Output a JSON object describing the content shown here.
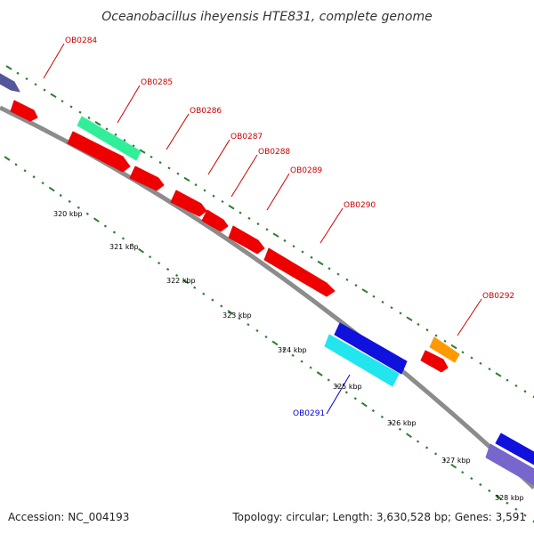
{
  "title": "Oceanobacillus iheyensis HTE831, complete genome",
  "footer": {
    "accession": "Accession: NC_004193",
    "summary": "Topology: circular; Length: 3,630,528 bp; Genes: 3,591"
  },
  "colors": {
    "backbone": "#8c8c8c",
    "forward_label": "#cc0000",
    "reverse_label": "#0000cc",
    "tick": "#2e7d32",
    "gene_red": "#ee0000",
    "gene_teal": "#33ee99",
    "gene_orange": "#ff9900",
    "gene_blue": "#1111dd",
    "gene_cyan": "#22e5ee",
    "gene_purple": "#7766cc",
    "gene_slate": "#555599"
  },
  "kbp_labels": [
    "320 kbp",
    "321 kbp",
    "322 kbp",
    "323 kbp",
    "324 kbp",
    "325 kbp",
    "326 kbp",
    "327 kbp",
    "328 kbp"
  ],
  "gene_labels": [
    {
      "name": "OB0284",
      "strand": "forward"
    },
    {
      "name": "OB0285",
      "strand": "forward"
    },
    {
      "name": "OB0286",
      "strand": "forward"
    },
    {
      "name": "OB0287",
      "strand": "forward"
    },
    {
      "name": "OB0288",
      "strand": "forward"
    },
    {
      "name": "OB0289",
      "strand": "forward"
    },
    {
      "name": "OB0290",
      "strand": "forward"
    },
    {
      "name": "OB0292",
      "strand": "forward"
    },
    {
      "name": "OB0291",
      "strand": "reverse"
    }
  ],
  "features": [
    {
      "id": "slate-left",
      "color": "gene_slate"
    },
    {
      "id": "red-small-left",
      "color": "gene_red"
    },
    {
      "id": "teal",
      "color": "gene_teal"
    },
    {
      "id": "red-1",
      "color": "gene_red"
    },
    {
      "id": "red-2",
      "color": "gene_red"
    },
    {
      "id": "red-3",
      "color": "gene_red"
    },
    {
      "id": "red-4",
      "color": "gene_red"
    },
    {
      "id": "red-5",
      "color": "gene_red"
    },
    {
      "id": "red-6",
      "color": "gene_red"
    },
    {
      "id": "blue-1",
      "color": "gene_blue"
    },
    {
      "id": "cyan",
      "color": "gene_cyan"
    },
    {
      "id": "orange",
      "color": "gene_orange"
    },
    {
      "id": "red-7",
      "color": "gene_red"
    },
    {
      "id": "blue-2",
      "color": "gene_blue"
    },
    {
      "id": "purple",
      "color": "gene_purple"
    }
  ]
}
